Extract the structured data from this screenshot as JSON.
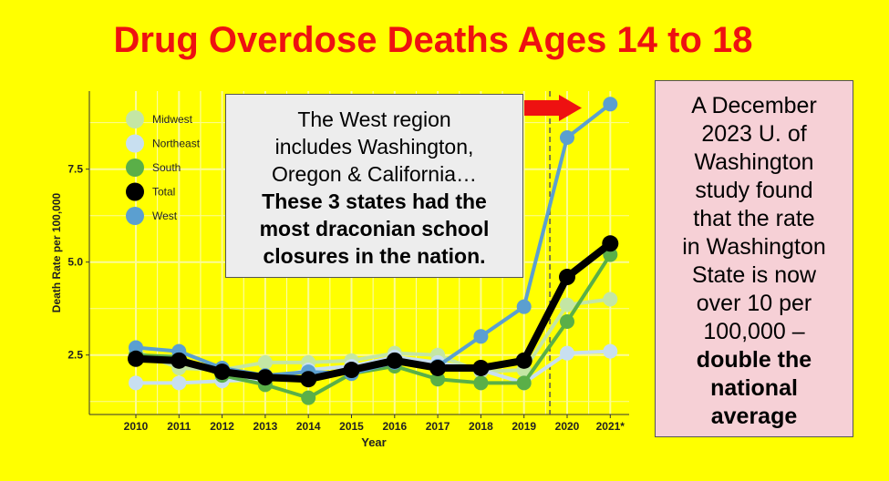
{
  "title": "Drug Overdose Deaths Ages 14 to 18",
  "chart_data": {
    "type": "line",
    "x": [
      "2010",
      "2011",
      "2012",
      "2013",
      "2014",
      "2015",
      "2016",
      "2017",
      "2018",
      "2019",
      "2020",
      "2021*"
    ],
    "xlabel": "Year",
    "ylabel": "Death Rate per 100,000",
    "ylim": [
      0.9,
      9.6
    ],
    "yticks": [
      2.5,
      5.0,
      7.5
    ],
    "ytick_labels": [
      "2.5",
      "5.0",
      "7.5"
    ],
    "grid": true,
    "legend_position": "top-left",
    "vline_after": "2019",
    "series": [
      {
        "name": "Midwest",
        "color": "#c4e6a4",
        "width": 4,
        "radius": 8,
        "values": [
          2.6,
          2.15,
          2.1,
          2.3,
          2.3,
          2.35,
          2.55,
          2.5,
          2.05,
          2.1,
          3.85,
          4.0
        ]
      },
      {
        "name": "Northeast",
        "color": "#c8dff0",
        "width": 4,
        "radius": 8,
        "values": [
          1.75,
          1.75,
          1.8,
          1.85,
          2.1,
          2.2,
          2.45,
          2.3,
          2.1,
          1.75,
          2.55,
          2.6
        ]
      },
      {
        "name": "South",
        "color": "#5aaf48",
        "width": 4,
        "radius": 8,
        "values": [
          2.5,
          2.45,
          1.95,
          1.7,
          1.35,
          2.0,
          2.2,
          1.85,
          1.75,
          1.75,
          3.4,
          5.2
        ]
      },
      {
        "name": "West",
        "color": "#5b9fd0",
        "width": 4,
        "radius": 8,
        "values": [
          2.7,
          2.6,
          2.15,
          1.95,
          2.05,
          2.0,
          2.3,
          2.2,
          3.0,
          3.8,
          8.35,
          9.25
        ]
      },
      {
        "name": "Total",
        "color": "#000000",
        "width": 8,
        "radius": 9,
        "values": [
          2.4,
          2.35,
          2.05,
          1.9,
          1.85,
          2.1,
          2.35,
          2.15,
          2.15,
          2.35,
          4.6,
          5.5
        ]
      }
    ],
    "legend": [
      {
        "name": "Midwest",
        "color": "#c4e6a4"
      },
      {
        "name": "Northeast",
        "color": "#c8dff0"
      },
      {
        "name": "South",
        "color": "#5aaf48"
      },
      {
        "name": "Total",
        "color": "#000000"
      },
      {
        "name": "West",
        "color": "#5b9fd0"
      }
    ]
  },
  "callout_left": {
    "line1": "The West region",
    "line2": "includes Washington,",
    "line3": "Oregon & California…",
    "bold1": "These 3 states had the",
    "bold2": "most draconian school",
    "bold3": "closures in the nation."
  },
  "callout_right": {
    "lines": [
      "A December",
      "2023 U. of",
      "Washington",
      "study found",
      "that the rate",
      "in Washington",
      "State is now",
      "over 10 per",
      "100,000 –"
    ],
    "bold_lines": [
      "double the",
      "national",
      "average"
    ]
  },
  "arrow_color": "#ee1111"
}
